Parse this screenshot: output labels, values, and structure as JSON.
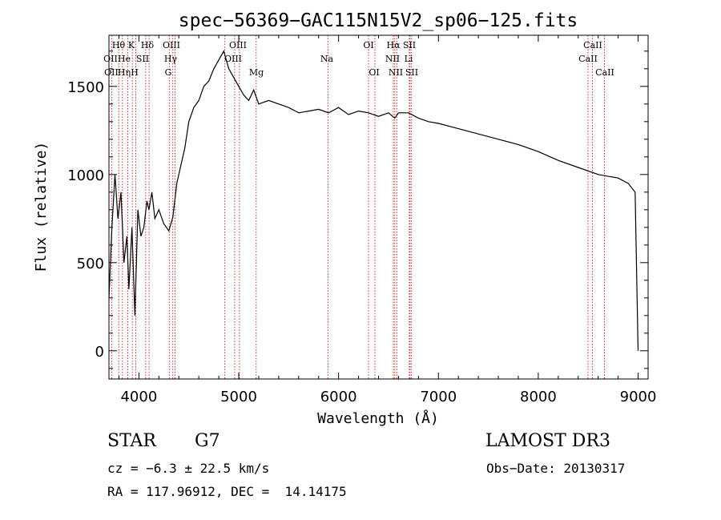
{
  "chart_data": {
    "type": "line",
    "title": "spec−56369−GAC115N15V2_sp06−125.fits",
    "xlabel": "Wavelength (Å)",
    "ylabel": "Flux (relative)",
    "xlim": [
      3700,
      9100
    ],
    "ylim": [
      -160,
      1790
    ],
    "x_ticks": [
      4000,
      5000,
      6000,
      7000,
      8000,
      9000
    ],
    "y_ticks": [
      0,
      500,
      1000,
      1500
    ],
    "series": [
      {
        "name": "spectrum",
        "x": [
          3700,
          3730,
          3760,
          3790,
          3820,
          3850,
          3880,
          3900,
          3930,
          3960,
          3990,
          4020,
          4050,
          4080,
          4100,
          4130,
          4160,
          4200,
          4250,
          4300,
          4340,
          4380,
          4420,
          4460,
          4500,
          4550,
          4600,
          4650,
          4700,
          4750,
          4800,
          4850,
          4900,
          4950,
          5000,
          5050,
          5100,
          5150,
          5200,
          5300,
          5400,
          5500,
          5600,
          5700,
          5800,
          5900,
          6000,
          6100,
          6200,
          6300,
          6400,
          6500,
          6563,
          6600,
          6700,
          6800,
          6900,
          7000,
          7200,
          7400,
          7600,
          7800,
          8000,
          8200,
          8400,
          8600,
          8800,
          8900,
          8970,
          9000
        ],
        "y": [
          300,
          700,
          1000,
          750,
          900,
          500,
          650,
          350,
          700,
          200,
          800,
          650,
          700,
          850,
          800,
          900,
          750,
          800,
          720,
          680,
          760,
          950,
          1050,
          1150,
          1300,
          1380,
          1420,
          1500,
          1530,
          1600,
          1650,
          1700,
          1600,
          1550,
          1500,
          1450,
          1420,
          1480,
          1400,
          1420,
          1400,
          1380,
          1350,
          1360,
          1370,
          1350,
          1380,
          1340,
          1360,
          1350,
          1330,
          1350,
          1320,
          1350,
          1350,
          1320,
          1300,
          1290,
          1260,
          1230,
          1200,
          1170,
          1130,
          1080,
          1040,
          1000,
          980,
          950,
          900,
          0
        ]
      }
    ],
    "lines_top": [
      "Hθ",
      "K",
      "Hδ",
      "OIII",
      "OIII",
      "OI",
      "Hα",
      "SII",
      "CaII"
    ],
    "lines_mid": [
      "OII",
      "He",
      "SII",
      "Hγ",
      "OIII",
      "Na",
      "NII",
      "Li",
      "CaII"
    ],
    "lines_bot": [
      "OII",
      "Hη",
      "H",
      "G",
      "Mg",
      "OI",
      "NII",
      "SII",
      "CaII"
    ]
  },
  "info": {
    "class": "STAR",
    "subclass": "G7",
    "survey": "LAMOST DR3",
    "cz": "cz = −6.3 ± 22.5 km/s",
    "obs_date": "Obs−Date: 20130317",
    "radec": "RA = 117.96912, DEC =  14.14175"
  }
}
